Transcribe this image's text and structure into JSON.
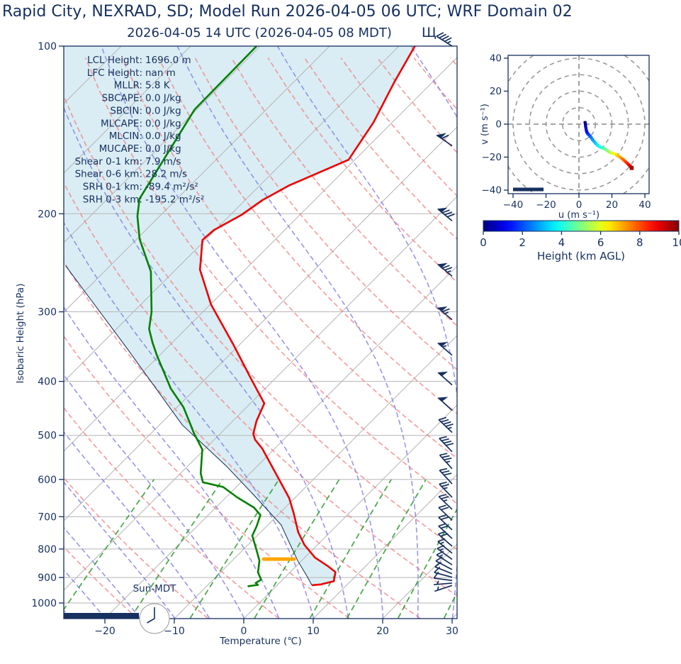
{
  "title": "Rapid City, NEXRAD, SD; Model Run 2026-04-05 06 UTC; WRF Domain 02",
  "subtitle": "2026-04-05 14 UTC  (2026-04-05 08 MDT)",
  "subtitle_glyph": "Щ",
  "colors": {
    "navy": "#16305f",
    "temperature": "#ed0000",
    "dewpoint": "#008000",
    "parcel": "#0d2b52",
    "cin_fill": "#add8e6",
    "isotherm": "#b5b5b5",
    "gridline": "#b5b5b5",
    "dry_adiabat": "#f08080",
    "moist_adiabat": "#7d7de1",
    "mixing_line": "#2e9b2e",
    "lcl_marker": "#ffa500",
    "hodo_grid": "#999999",
    "sun_bar": "#16305f"
  },
  "skewt": {
    "x_axis": {
      "label": "Temperature (℃)",
      "ticks": [
        -20,
        -10,
        0,
        10,
        20,
        30
      ]
    },
    "y_axis": {
      "label": "Isobaric Height (hPa)",
      "ticks": [
        100,
        200,
        300,
        400,
        500,
        600,
        700,
        800,
        900,
        1000
      ]
    },
    "stats": [
      {
        "label": "LCL Height:",
        "value": "1696.0 m"
      },
      {
        "label": "LFC Height:",
        "value": "nan m"
      },
      {
        "label": "MLLR:",
        "value": "5.8 K"
      },
      {
        "label": "SBCAPE:",
        "value": "0.0 J/kg"
      },
      {
        "label": "SBCIN:",
        "value": "0.0 J/kg"
      },
      {
        "label": "MLCAPE:",
        "value": "0.0 J/kg"
      },
      {
        "label": "MLCIN:",
        "value": "0.0 J/kg"
      },
      {
        "label": "MUCAPE:",
        "value": "0.0 J/kg"
      },
      {
        "label": "Shear 0-1 km:",
        "value": "7.9 m/s"
      },
      {
        "label": "Shear 0-6 km:",
        "value": "28.2 m/s"
      },
      {
        "label": "SRH 0-1 km:",
        "value": "-89.4 m²/s²"
      },
      {
        "label": "SRH 0-3 km:",
        "value": "-195.2 m²/s²"
      }
    ],
    "sun_label": "Sun-MDT",
    "sun_bar_end_temp": -15.1,
    "background": {
      "isotherms_c": {
        "start": -110,
        "end": 40,
        "step": 10
      },
      "dry_adiabats_c": {
        "start": -30,
        "end": 160,
        "step": 10
      },
      "moist_adiabats_c": {
        "start": -45,
        "end": 40,
        "step": 5
      },
      "mixing_ratios_gkg": [
        0.4,
        1,
        2,
        4,
        7,
        10,
        16,
        24,
        32
      ],
      "mixing_top_hpa": 600,
      "pressure_gridlines_hpa": [
        100,
        200,
        300,
        400,
        500,
        600,
        700,
        800,
        900,
        1000
      ]
    }
  },
  "chart_data": {
    "type": "skewt-sounding",
    "pressure_range_hpa": [
      100,
      1067
    ],
    "temperature_profile_p_t": [
      [
        100,
        -57.7
      ],
      [
        116,
        -55.5
      ],
      [
        137,
        -52.7
      ],
      [
        160,
        -50.9
      ],
      [
        178,
        -55.8
      ],
      [
        189,
        -57.5
      ],
      [
        201,
        -58.4
      ],
      [
        214,
        -60.2
      ],
      [
        223,
        -60.4
      ],
      [
        252,
        -56.5
      ],
      [
        291,
        -49.9
      ],
      [
        343,
        -41.0
      ],
      [
        399,
        -33.0
      ],
      [
        438,
        -28.0
      ],
      [
        471,
        -26.6
      ],
      [
        497,
        -25.2
      ],
      [
        509,
        -24.1
      ],
      [
        528,
        -21.8
      ],
      [
        571,
        -17.6
      ],
      [
        648,
        -10.8
      ],
      [
        691,
        -7.9
      ],
      [
        746,
        -4.6
      ],
      [
        786,
        -1.9
      ],
      [
        829,
        1.5
      ],
      [
        860,
        4.7
      ],
      [
        880,
        6.5
      ],
      [
        892,
        6.9
      ],
      [
        914,
        7.6
      ],
      [
        926,
        6.2
      ],
      [
        929,
        5.0
      ]
    ],
    "dewpoint_profile_p_t": [
      [
        100,
        -80.5
      ],
      [
        130,
        -80.3
      ],
      [
        188,
        -75.4
      ],
      [
        202,
        -73.2
      ],
      [
        222,
        -69.6
      ],
      [
        254,
        -63.3
      ],
      [
        300,
        -57.4
      ],
      [
        322,
        -55.3
      ],
      [
        341,
        -52.8
      ],
      [
        359,
        -50.4
      ],
      [
        412,
        -43.6
      ],
      [
        445,
        -39.1
      ],
      [
        477,
        -35.7
      ],
      [
        495,
        -33.9
      ],
      [
        530,
        -30.3
      ],
      [
        585,
        -27.1
      ],
      [
        607,
        -25.5
      ],
      [
        619,
        -21.9
      ],
      [
        646,
        -18.4
      ],
      [
        674,
        -14.5
      ],
      [
        695,
        -12.5
      ],
      [
        729,
        -11.4
      ],
      [
        757,
        -10.7
      ],
      [
        802,
        -8.1
      ],
      [
        839,
        -6.1
      ],
      [
        881,
        -4.6
      ],
      [
        908,
        -3.1
      ],
      [
        921,
        -3.4
      ],
      [
        928,
        -2.8
      ],
      [
        933,
        -4.1
      ]
    ],
    "parcel_profile_p_t": [
      [
        929,
        5.0
      ],
      [
        895,
        3.0
      ],
      [
        839,
        -0.6
      ],
      [
        724,
        -8.1
      ],
      [
        644,
        -15.9
      ],
      [
        568,
        -24.4
      ],
      [
        479,
        -36.7
      ],
      [
        350,
        -55.5
      ],
      [
        248,
        -76.4
      ]
    ],
    "lcl_marker": {
      "pressure_hpa": 834,
      "temp_c": -3.5,
      "half_width_c": 2.2
    },
    "wind_barbs_p_u_v": [
      [
        930,
        3,
        1
      ],
      [
        921,
        3.5,
        0.3
      ],
      [
        911,
        4,
        -0.5
      ],
      [
        899,
        4.5,
        -1.2
      ],
      [
        886,
        5,
        -2
      ],
      [
        871,
        5.3,
        -2.8
      ],
      [
        854,
        5.6,
        -3.6
      ],
      [
        835,
        6,
        -4.4
      ],
      [
        814,
        6.4,
        -5.2
      ],
      [
        791,
        6.8,
        -6
      ],
      [
        766,
        7.2,
        -6.6
      ],
      [
        739,
        7.7,
        -7.1
      ],
      [
        710,
        8.2,
        -7.7
      ],
      [
        679,
        8.8,
        -8.5
      ],
      [
        646,
        9.5,
        -9.8
      ],
      [
        611,
        10.8,
        -11.6
      ],
      [
        574,
        12.4,
        -13.6
      ],
      [
        535,
        14.2,
        -14.6
      ],
      [
        494,
        16,
        -15.2
      ],
      [
        451,
        17.8,
        -16.2
      ],
      [
        406,
        19.6,
        -17.4
      ],
      [
        359,
        21.6,
        -18.4
      ],
      [
        310,
        24.4,
        -20.3
      ],
      [
        259,
        28,
        -23.3
      ],
      [
        206,
        31.2,
        -26
      ],
      [
        151,
        25.5,
        -17.5
      ],
      [
        100,
        19,
        -12
      ]
    ],
    "hodograph": {
      "u_label": "u (m s⁻¹)",
      "v_label": "v (m s⁻¹)",
      "u_ticks": [
        -40,
        -20,
        0,
        20,
        40
      ],
      "v_ticks": [
        -40,
        -20,
        0,
        20,
        40
      ],
      "ring_radii": [
        10,
        20,
        30,
        40,
        50,
        60
      ],
      "trace_u_v_z": [
        [
          3.7,
          1.0,
          0
        ],
        [
          3.9,
          0.2,
          0.2
        ],
        [
          4.0,
          -0.8,
          0.4
        ],
        [
          4.1,
          -1.8,
          0.6
        ],
        [
          4.3,
          -2.8,
          0.8
        ],
        [
          4.5,
          -3.8,
          1.0
        ],
        [
          4.8,
          -4.8,
          1.2
        ],
        [
          5.3,
          -5.7,
          1.5
        ],
        [
          6.0,
          -6.5,
          1.8
        ],
        [
          6.7,
          -7.3,
          2.1
        ],
        [
          7.5,
          -8.3,
          2.4
        ],
        [
          8.3,
          -9.4,
          2.7
        ],
        [
          9.2,
          -10.6,
          3.0
        ],
        [
          10.2,
          -11.7,
          3.3
        ],
        [
          11.3,
          -12.8,
          3.6
        ],
        [
          12.5,
          -13.7,
          3.9
        ],
        [
          13.8,
          -14.3,
          4.2
        ],
        [
          15.0,
          -14.7,
          4.5
        ],
        [
          16.2,
          -15.3,
          4.8
        ],
        [
          17.3,
          -16.1,
          5.1
        ],
        [
          18.4,
          -16.9,
          5.4
        ],
        [
          19.5,
          -17.4,
          5.7
        ],
        [
          20.6,
          -17.7,
          6.0
        ],
        [
          21.7,
          -18.1,
          6.3
        ],
        [
          22.8,
          -18.6,
          6.6
        ],
        [
          23.9,
          -19.3,
          6.9
        ],
        [
          25.0,
          -20.1,
          7.2
        ],
        [
          26.1,
          -20.9,
          7.5
        ],
        [
          27.2,
          -21.8,
          7.8
        ],
        [
          28.2,
          -22.7,
          8.1
        ],
        [
          29.2,
          -23.6,
          8.4
        ],
        [
          30.1,
          -24.5,
          8.7
        ],
        [
          30.9,
          -25.3,
          9.0
        ],
        [
          31.5,
          -25.9,
          9.3
        ],
        [
          31.9,
          -26.3,
          9.6
        ],
        [
          32.0,
          -26.6,
          10.0
        ]
      ]
    },
    "colorbar": {
      "label": "Height (km AGL)",
      "ticks": [
        0,
        2,
        4,
        6,
        8,
        10
      ],
      "min": 0,
      "max": 10
    }
  }
}
